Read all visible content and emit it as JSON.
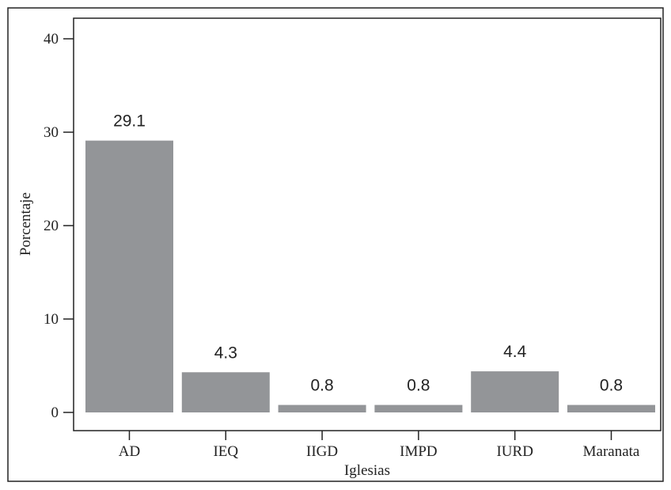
{
  "chart_data": {
    "type": "bar",
    "title": "",
    "xlabel": "Iglesias",
    "ylabel": "Porcentaje",
    "categories": [
      "AD",
      "IEQ",
      "IIGD",
      "IMPD",
      "IURD",
      "Maranata"
    ],
    "values": [
      29.1,
      4.3,
      0.8,
      0.8,
      4.4,
      0.8
    ],
    "data_labels": [
      "29.1",
      "4.3",
      "0.8",
      "0.8",
      "4.4",
      "0.8"
    ],
    "ylim": [
      0,
      42
    ],
    "yticks": [
      0,
      10,
      20,
      30,
      40
    ],
    "ytick_labels": [
      "0",
      "10",
      "20",
      "30",
      "40"
    ],
    "grid": false,
    "legend": "none",
    "bar_color": "#939598",
    "border_color": "#222222"
  }
}
